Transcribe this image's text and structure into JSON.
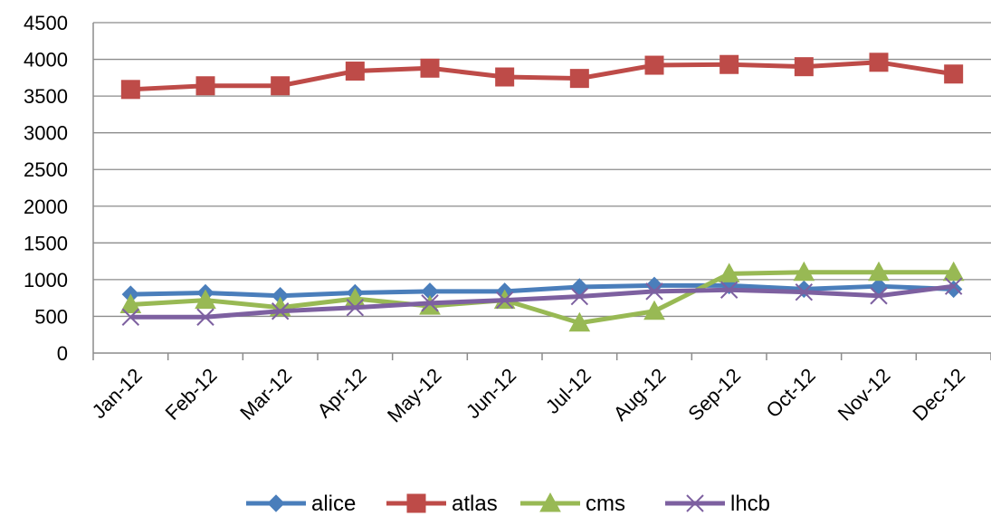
{
  "chart_data": {
    "type": "line",
    "title": "",
    "xlabel": "",
    "ylabel": "",
    "categories": [
      "Jan-12",
      "Feb-12",
      "Mar-12",
      "Apr-12",
      "May-12",
      "Jun-12",
      "Jul-12",
      "Aug-12",
      "Sep-12",
      "Oct-12",
      "Nov-12",
      "Dec-12"
    ],
    "yticks": [
      "0",
      "500",
      "1000",
      "1500",
      "2000",
      "2500",
      "3000",
      "3500",
      "4000",
      "4500"
    ],
    "ylim": [
      0,
      4500
    ],
    "grid": true,
    "legend_position": "bottom",
    "series": [
      {
        "name": "alice",
        "color": "#4a7ebb",
        "marker": "diamond",
        "values": [
          800,
          820,
          780,
          820,
          840,
          840,
          900,
          920,
          920,
          870,
          910,
          870
        ]
      },
      {
        "name": "atlas",
        "color": "#be4b48",
        "marker": "square",
        "values": [
          3590,
          3640,
          3640,
          3840,
          3880,
          3760,
          3740,
          3920,
          3930,
          3900,
          3960,
          3800
        ]
      },
      {
        "name": "cms",
        "color": "#98b954",
        "marker": "triangle",
        "values": [
          660,
          720,
          620,
          740,
          640,
          720,
          410,
          570,
          1080,
          1100,
          1100,
          1100
        ]
      },
      {
        "name": "lhcb",
        "color": "#7d60a0",
        "marker": "x",
        "values": [
          490,
          490,
          570,
          620,
          680,
          720,
          770,
          840,
          860,
          830,
          780,
          910
        ]
      }
    ]
  }
}
